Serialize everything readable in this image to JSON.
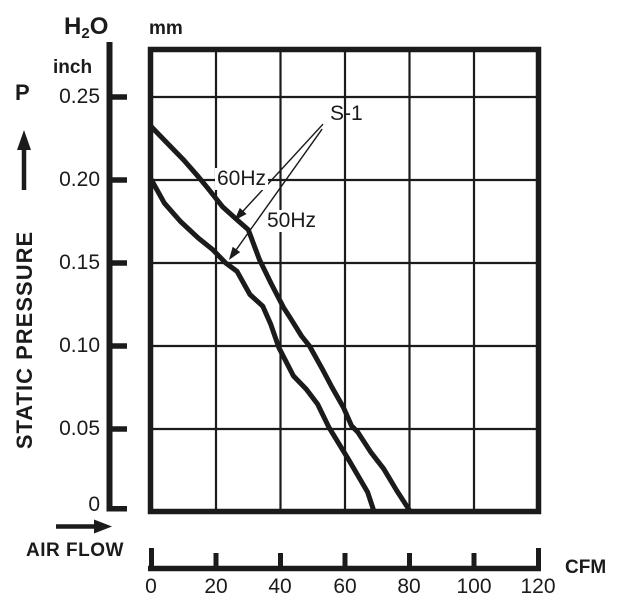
{
  "page": {
    "background": "#ffffff",
    "ink": "#1b1b1b"
  },
  "labels": {
    "pressure_symbol": "P",
    "unit_h2o_h": "H",
    "unit_h2o_sub": "2",
    "unit_h2o_o": "O",
    "unit_inch": "inch",
    "unit_mm": "mm",
    "y_axis_title": "STATIC PRESSURE",
    "x_axis_title": "AIR FLOW",
    "x_axis_unit": "CFM"
  },
  "axes": {
    "y_tick_labels": [
      "0.25",
      "0.20",
      "0.15",
      "0.10",
      "0.05",
      "0"
    ],
    "x_tick_labels": [
      "0",
      "20",
      "40",
      "60",
      "80",
      "100",
      "120"
    ]
  },
  "chart_data": {
    "type": "line",
    "xlabel": "AIR FLOW",
    "x_unit": "CFM",
    "ylabel": "STATIC PRESSURE",
    "y_units": [
      "inch",
      "mm"
    ],
    "y_medium": "H2O",
    "x_range": [
      0,
      120
    ],
    "y_range_inch": [
      0,
      0.25
    ],
    "x_tick_values": [
      0,
      20,
      40,
      60,
      80,
      100,
      120
    ],
    "y_tick_values": [
      0.25,
      0.2,
      0.15,
      0.1,
      0.05,
      0
    ],
    "grid": true,
    "legend_position": "inline-annotations",
    "series": [
      {
        "name": "60Hz",
        "points": [
          [
            0,
            0.232
          ],
          [
            5,
            0.222
          ],
          [
            10,
            0.212
          ],
          [
            14.5,
            0.202
          ],
          [
            17.5,
            0.195
          ],
          [
            22,
            0.184
          ],
          [
            26.5,
            0.176
          ],
          [
            30,
            0.17
          ],
          [
            33.5,
            0.152
          ],
          [
            37,
            0.138
          ],
          [
            41,
            0.123
          ],
          [
            43,
            0.117
          ],
          [
            46.5,
            0.106
          ],
          [
            49,
            0.1
          ],
          [
            53,
            0.086
          ],
          [
            56,
            0.075
          ],
          [
            59.5,
            0.063
          ],
          [
            62,
            0.052
          ],
          [
            64,
            0.048
          ],
          [
            68,
            0.036
          ],
          [
            72,
            0.026
          ],
          [
            76,
            0.013
          ],
          [
            80,
            0.001
          ]
        ]
      },
      {
        "name": "50Hz",
        "points": [
          [
            0,
            0.2
          ],
          [
            4,
            0.186
          ],
          [
            9,
            0.175
          ],
          [
            14.5,
            0.165
          ],
          [
            19,
            0.158
          ],
          [
            23,
            0.15
          ],
          [
            26.5,
            0.145
          ],
          [
            30.5,
            0.131
          ],
          [
            34.5,
            0.124
          ],
          [
            37,
            0.113
          ],
          [
            39.5,
            0.099
          ],
          [
            44,
            0.082
          ],
          [
            48,
            0.074
          ],
          [
            51.5,
            0.065
          ],
          [
            55,
            0.051
          ],
          [
            61,
            0.032
          ],
          [
            64,
            0.022
          ],
          [
            67,
            0.012
          ],
          [
            68.7,
            0.002
          ]
        ]
      }
    ],
    "annotation": {
      "label": "S-1",
      "arrows": [
        {
          "from": [
            53.2,
            0.2337
          ],
          "to": [
            25.7,
            0.1756
          ],
          "targets_series": "60Hz"
        },
        {
          "from": [
            52.9,
            0.2307
          ],
          "to": [
            24.0,
            0.1518
          ],
          "targets_series": "50Hz"
        }
      ]
    }
  }
}
